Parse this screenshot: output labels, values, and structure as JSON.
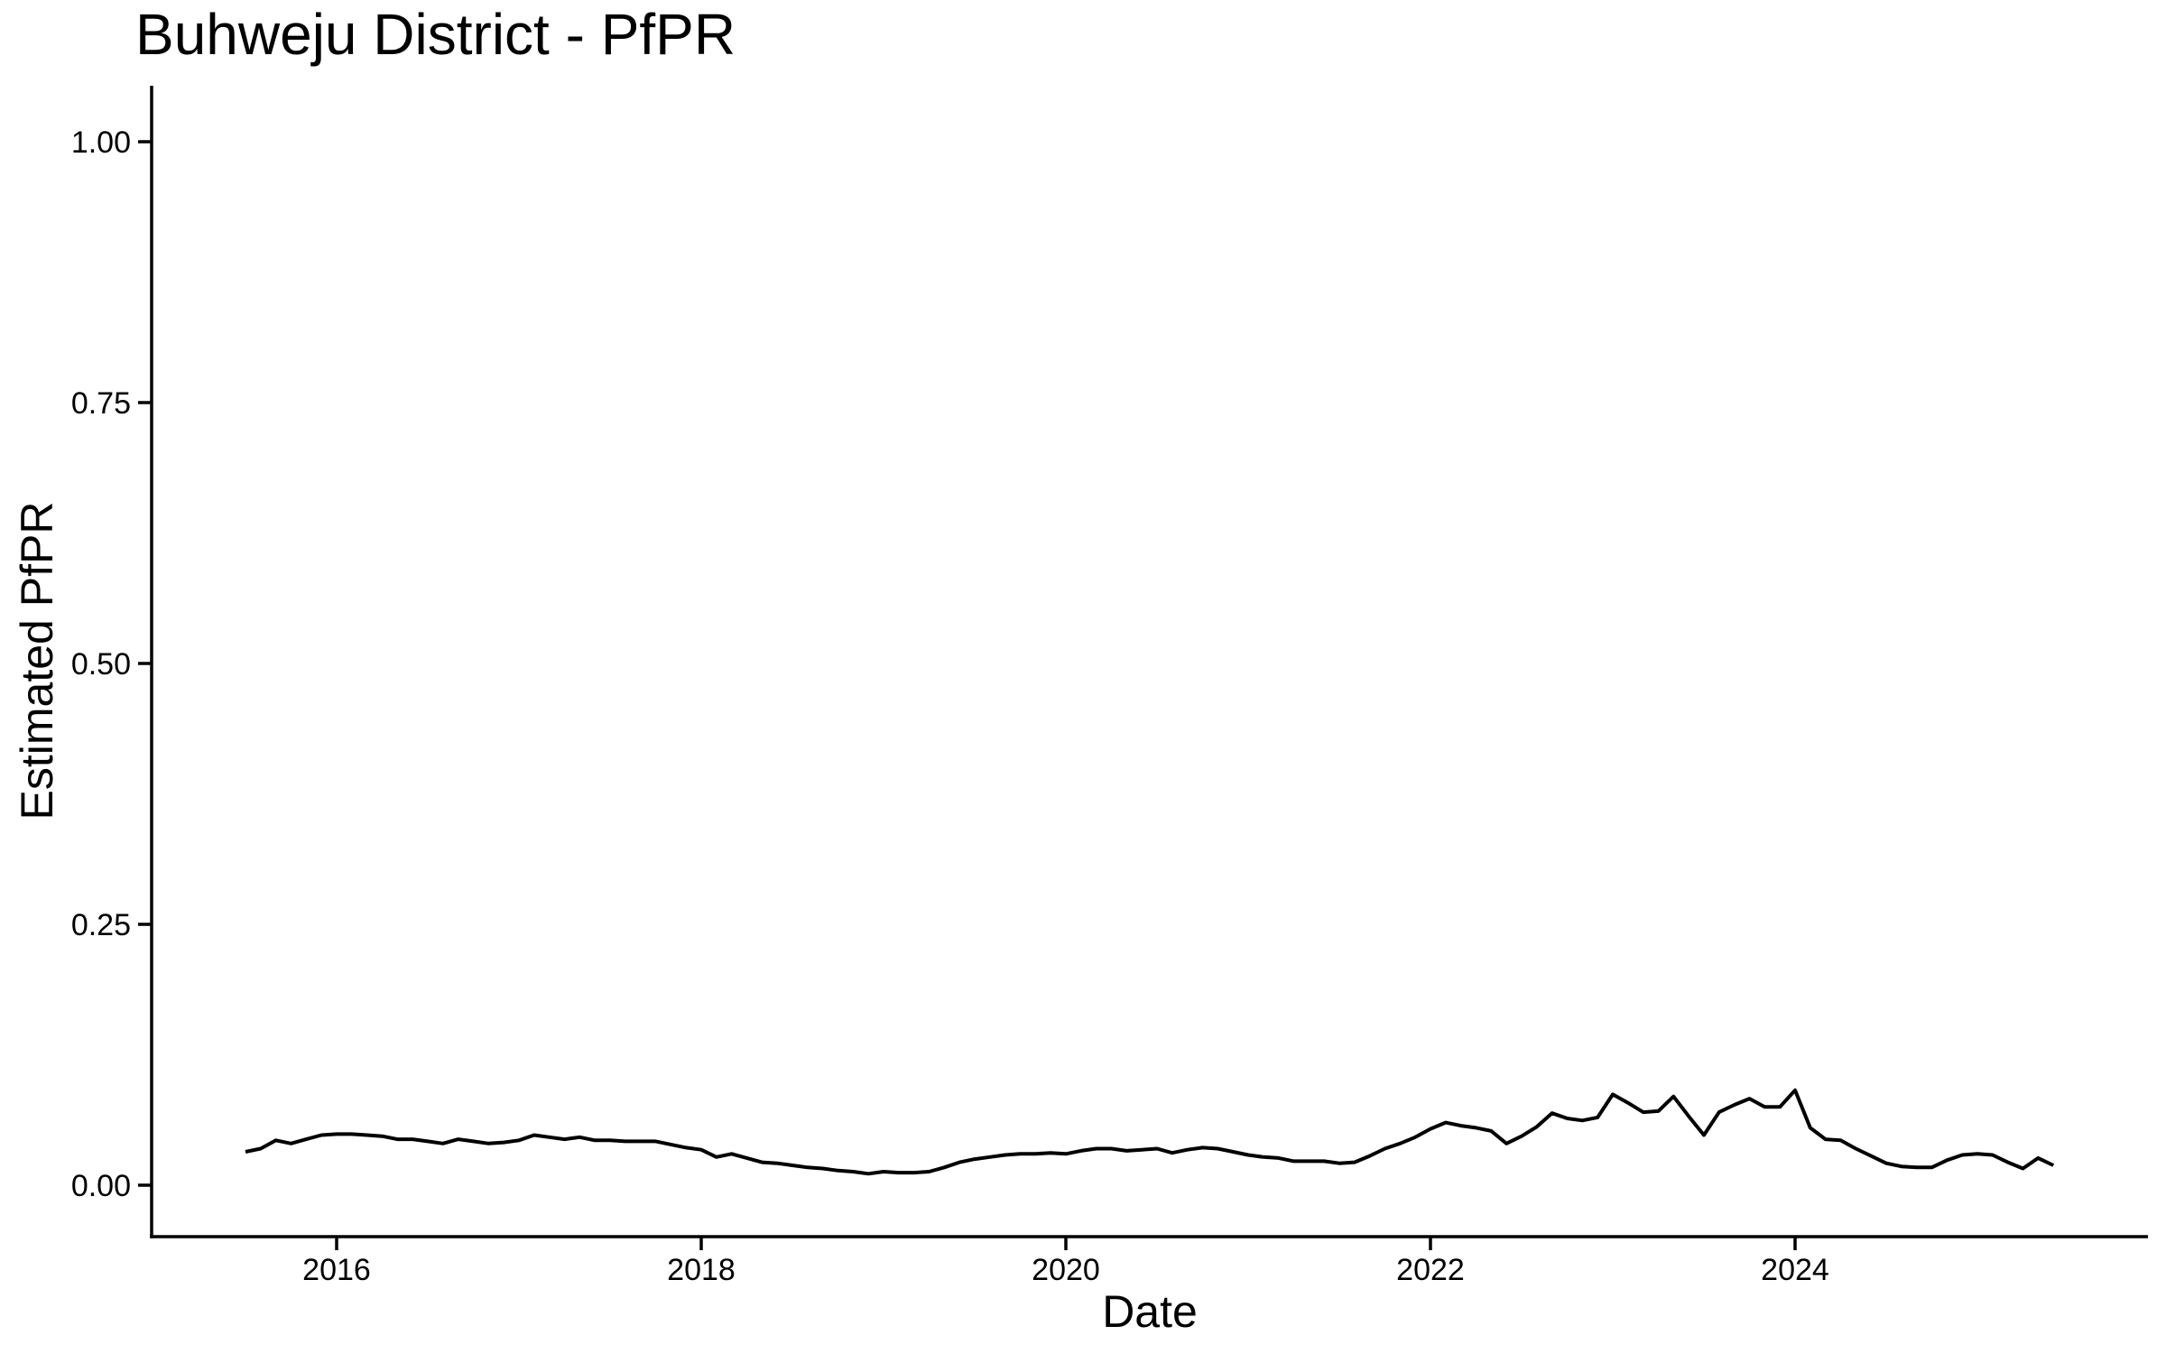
{
  "page": {
    "background_color": "#ffffff",
    "text_color": "#000000"
  },
  "chart_data": {
    "type": "line",
    "title": "Buhweju District - PfPR",
    "xlabel": "Date",
    "ylabel": "Estimated PfPR",
    "grid": false,
    "legend": false,
    "line_color": "#000000",
    "axis_color": "#000000",
    "ylim": [
      0.0,
      1.0
    ],
    "x_axis_unit": "year",
    "x_ticks": {
      "years": [
        2016,
        2018,
        2020,
        2022,
        2024
      ],
      "labels": [
        "2016",
        "2018",
        "2020",
        "2022",
        "2024"
      ]
    },
    "y_ticks": {
      "values": [
        0.0,
        0.25,
        0.5,
        0.75,
        1.0
      ],
      "labels": [
        "0.00",
        "0.25",
        "0.50",
        "0.75",
        "1.00"
      ]
    },
    "series": [
      {
        "name": "Estimated PfPR",
        "frequency": "monthly",
        "start_year": 2015,
        "start_month": 7,
        "end_year": 2025,
        "end_month": 6,
        "values": [
          0.032,
          0.035,
          0.043,
          0.04,
          0.044,
          0.048,
          0.049,
          0.049,
          0.048,
          0.047,
          0.044,
          0.044,
          0.042,
          0.04,
          0.044,
          0.042,
          0.04,
          0.041,
          0.043,
          0.048,
          0.046,
          0.044,
          0.046,
          0.043,
          0.043,
          0.042,
          0.042,
          0.042,
          0.039,
          0.036,
          0.034,
          0.027,
          0.03,
          0.026,
          0.022,
          0.021,
          0.019,
          0.017,
          0.016,
          0.014,
          0.013,
          0.011,
          0.013,
          0.012,
          0.012,
          0.013,
          0.017,
          0.022,
          0.025,
          0.027,
          0.029,
          0.03,
          0.03,
          0.031,
          0.03,
          0.033,
          0.035,
          0.035,
          0.033,
          0.034,
          0.035,
          0.031,
          0.034,
          0.036,
          0.035,
          0.032,
          0.029,
          0.027,
          0.026,
          0.023,
          0.023,
          0.023,
          0.021,
          0.022,
          0.028,
          0.035,
          0.04,
          0.046,
          0.054,
          0.06,
          0.057,
          0.055,
          0.052,
          0.04,
          0.047,
          0.056,
          0.069,
          0.064,
          0.062,
          0.065,
          0.087,
          0.079,
          0.07,
          0.071,
          0.085,
          0.066,
          0.048,
          0.07,
          0.077,
          0.083,
          0.075,
          0.075,
          0.091,
          0.055,
          0.044,
          0.043,
          0.035,
          0.028,
          0.021,
          0.018,
          0.017,
          0.017,
          0.024,
          0.029,
          0.03,
          0.029,
          0.022,
          0.016,
          0.026,
          0.019
        ]
      }
    ]
  }
}
